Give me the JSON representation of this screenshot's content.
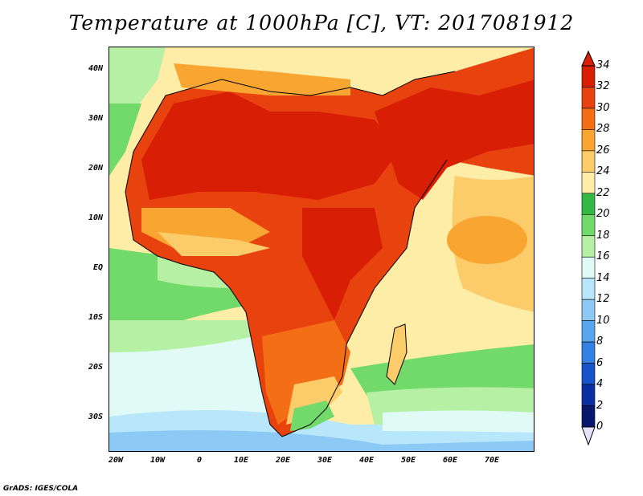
{
  "title": "Temperature at 1000hPa [C], VT: 2017081912",
  "credit": "GrADS: IGES/COLA",
  "map": {
    "lat_ticks": [
      "40N",
      "30N",
      "20N",
      "10N",
      "EQ",
      "10S",
      "20S",
      "30S"
    ],
    "lon_ticks": [
      "20W",
      "10W",
      "0",
      "10E",
      "20E",
      "30E",
      "40E",
      "50E",
      "60E",
      "70E"
    ]
  },
  "colorbar": {
    "levels": [
      "34",
      "32",
      "30",
      "28",
      "26",
      "24",
      "22",
      "20",
      "18",
      "16",
      "14",
      "12",
      "10",
      "8",
      "6",
      "4",
      "2",
      "0"
    ],
    "colors": [
      "#d81e05",
      "#e8420f",
      "#f36e14",
      "#f9a532",
      "#fccc6a",
      "#fdeda6",
      "#33b844",
      "#72d96b",
      "#b6f0a4",
      "#e0fbf5",
      "#b8e6fb",
      "#8ccaf5",
      "#5aa6ee",
      "#3180e2",
      "#1554c9",
      "#0a2ea4",
      "#08166e"
    ]
  },
  "icons": {
    "over_arrow": "triangle-up-icon",
    "under_arrow": "triangle-down-icon"
  }
}
